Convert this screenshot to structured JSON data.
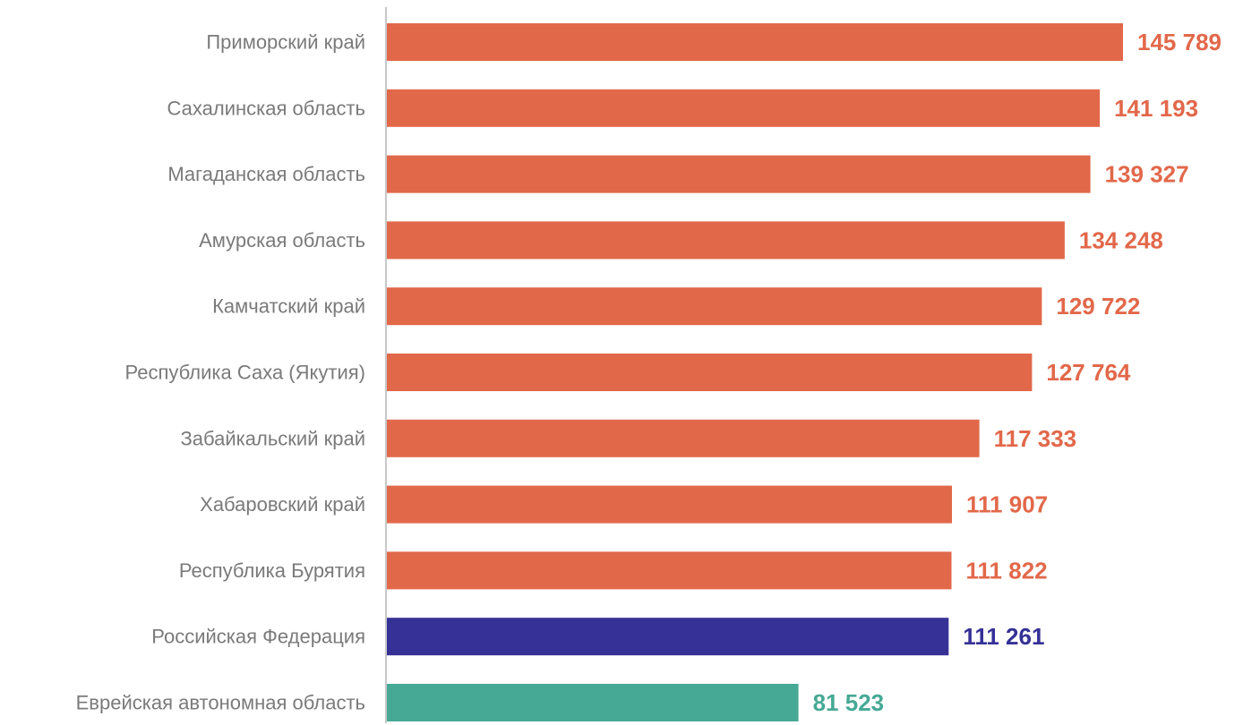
{
  "chart_data": {
    "type": "bar",
    "orientation": "horizontal",
    "categories": [
      "Приморский край",
      "Сахалинская область",
      "Магаданская область",
      "Амурская область",
      "Камчатский край",
      "Республика Саха (Якутия)",
      "Забайкальский край",
      "Хабаровский край",
      "Республика Бурятия",
      "Российская Федерация",
      "Еврейская автономная область"
    ],
    "values": [
      145789,
      141193,
      139327,
      134248,
      129722,
      127764,
      117333,
      111907,
      111822,
      111261,
      81523
    ],
    "value_labels": [
      "145 789",
      "141 193",
      "139 327",
      "134 248",
      "129 722",
      "127 764",
      "117 333",
      "111 907",
      "111 822",
      "111 261",
      "81 523"
    ],
    "bar_colors": [
      "#e2684a",
      "#e2684a",
      "#e2684a",
      "#e2684a",
      "#e2684a",
      "#e2684a",
      "#e2684a",
      "#e2684a",
      "#e2684a",
      "#363196",
      "#46a995"
    ],
    "xlim": [
      0,
      145789
    ],
    "grid": false,
    "legend": "none",
    "title": "",
    "xlabel": "",
    "ylabel": ""
  },
  "colors": {
    "region": "#e2684a",
    "federation": "#363196",
    "jewish_ao": "#46a995",
    "category_text": "#7a7a7a",
    "axis": "#c8c8c8"
  }
}
